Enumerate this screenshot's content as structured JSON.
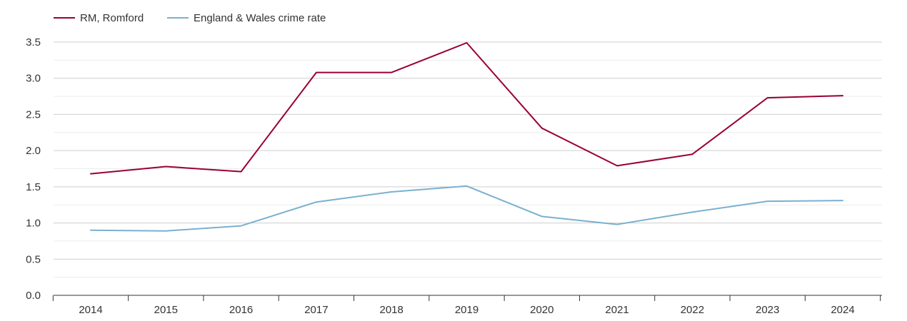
{
  "chart_data": {
    "type": "line",
    "title": "",
    "xlabel": "",
    "ylabel": "",
    "categories": [
      "2014",
      "2015",
      "2016",
      "2017",
      "2018",
      "2019",
      "2020",
      "2021",
      "2022",
      "2023",
      "2024"
    ],
    "series": [
      {
        "name": "RM, Romford",
        "color": "#990033",
        "values": [
          1.68,
          1.78,
          1.71,
          3.08,
          3.08,
          3.49,
          2.31,
          1.79,
          1.95,
          2.73,
          2.76
        ]
      },
      {
        "name": "England & Wales crime rate",
        "color": "#7ab0d0",
        "values": [
          0.9,
          0.89,
          0.96,
          1.29,
          1.43,
          1.51,
          1.09,
          0.98,
          1.15,
          1.3,
          1.31
        ]
      }
    ],
    "ylim": [
      0,
      3.5
    ],
    "yticks": [
      "0.0",
      "0.5",
      "1.0",
      "1.5",
      "2.0",
      "2.5",
      "3.0",
      "3.5"
    ],
    "grid": true,
    "legend_position": "top-left"
  }
}
